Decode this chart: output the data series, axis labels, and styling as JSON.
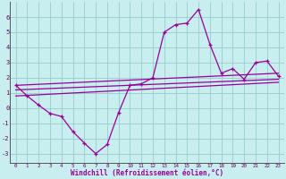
{
  "xlabel": "Windchill (Refroidissement éolien,°C)",
  "background_color": "#c8eef0",
  "line_color": "#990099",
  "grid_color": "#99cccc",
  "xlim": [
    -0.5,
    23.5
  ],
  "ylim": [
    -3.6,
    7.0
  ],
  "yticks": [
    -3,
    -2,
    -1,
    0,
    1,
    2,
    3,
    4,
    5,
    6
  ],
  "xticks": [
    0,
    1,
    2,
    3,
    4,
    5,
    6,
    7,
    8,
    9,
    10,
    11,
    12,
    13,
    14,
    15,
    16,
    17,
    18,
    19,
    20,
    21,
    22,
    23
  ],
  "main_line_x": [
    0,
    1,
    2,
    3,
    4,
    5,
    6,
    7,
    8,
    9,
    10,
    11,
    12,
    13,
    14,
    15,
    16,
    17,
    18,
    19,
    20,
    21,
    22,
    23
  ],
  "main_line_y": [
    1.5,
    0.8,
    0.2,
    -0.35,
    -0.55,
    -1.55,
    -2.3,
    -3.0,
    -2.4,
    -0.3,
    1.5,
    1.6,
    2.0,
    5.0,
    5.5,
    5.6,
    6.5,
    4.2,
    2.3,
    2.6,
    1.9,
    3.0,
    3.1,
    2.1
  ],
  "reg_line1_x": [
    0,
    23
  ],
  "reg_line1_y": [
    1.5,
    2.3
  ],
  "reg_line2_x": [
    0,
    23
  ],
  "reg_line2_y": [
    1.2,
    1.9
  ],
  "reg_line3_x": [
    0,
    23
  ],
  "reg_line3_y": [
    0.8,
    1.7
  ]
}
